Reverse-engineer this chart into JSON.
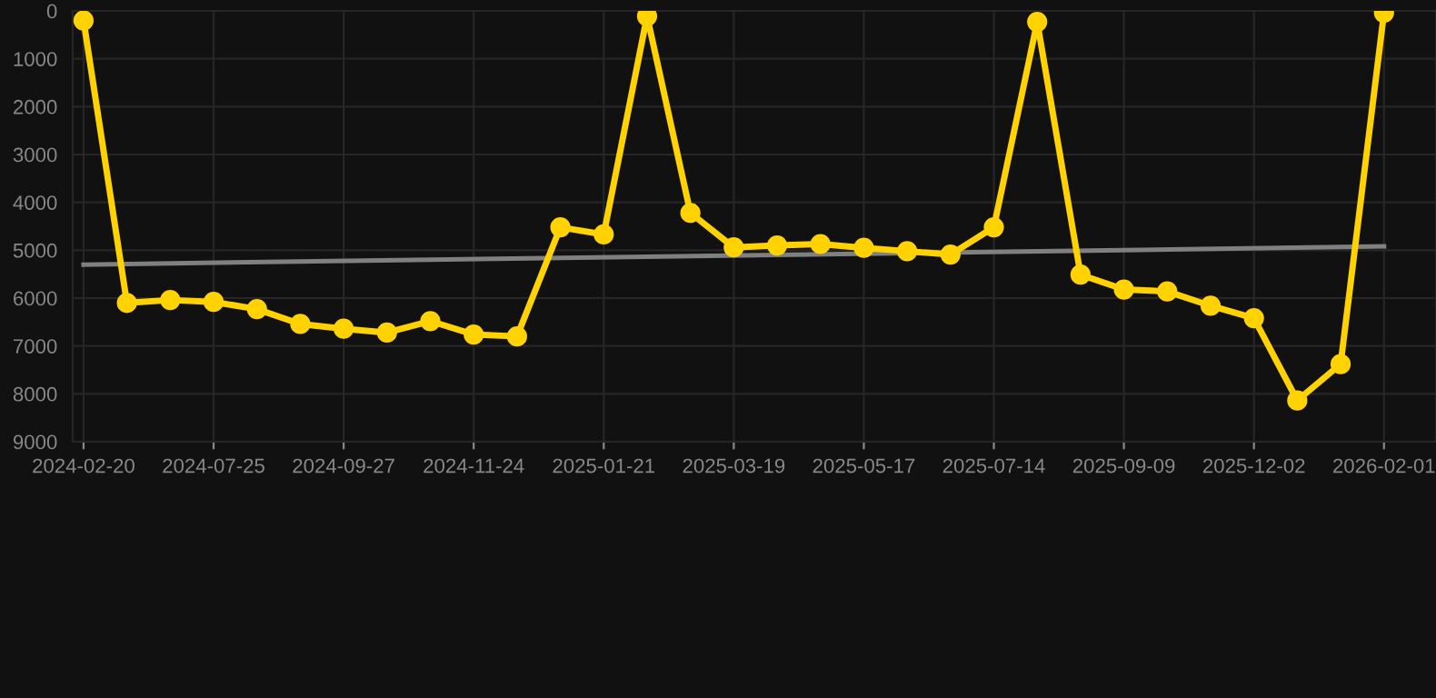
{
  "chart_data": {
    "type": "line",
    "categories": [
      "2024-02-20",
      null,
      null,
      "2024-07-25",
      null,
      null,
      "2024-09-27",
      null,
      null,
      "2024-11-24",
      null,
      null,
      "2025-01-21",
      null,
      null,
      "2025-03-19",
      null,
      null,
      "2025-05-17",
      null,
      null,
      "2025-07-14",
      null,
      null,
      "2025-09-09",
      null,
      null,
      "2025-12-02",
      null,
      null,
      "2026-02-01"
    ],
    "series": [
      {
        "color": "#ffd200",
        "marker": "circle",
        "values": [
          200,
          6100,
          6040,
          6080,
          6230,
          6540,
          6640,
          6720,
          6480,
          6760,
          6800,
          4520,
          4670,
          110,
          4220,
          4940,
          4900,
          4870,
          4950,
          5020,
          5090,
          4520,
          230,
          5510,
          5820,
          5860,
          6160,
          6420,
          8140,
          7380,
          40
        ]
      },
      {
        "type": "line",
        "color": "#808080",
        "marker": "none",
        "values": [
          5300,
          null,
          null,
          null,
          null,
          null,
          null,
          null,
          null,
          null,
          null,
          null,
          null,
          null,
          null,
          null,
          null,
          null,
          null,
          null,
          null,
          null,
          null,
          null,
          null,
          null,
          null,
          null,
          null,
          null,
          4920
        ]
      }
    ],
    "ylim": [
      9000,
      0
    ],
    "yticks": [
      0,
      1000,
      2000,
      3000,
      4000,
      5000,
      6000,
      7000,
      8000,
      9000
    ],
    "grid": true,
    "legend": false,
    "line_style": "solid"
  }
}
